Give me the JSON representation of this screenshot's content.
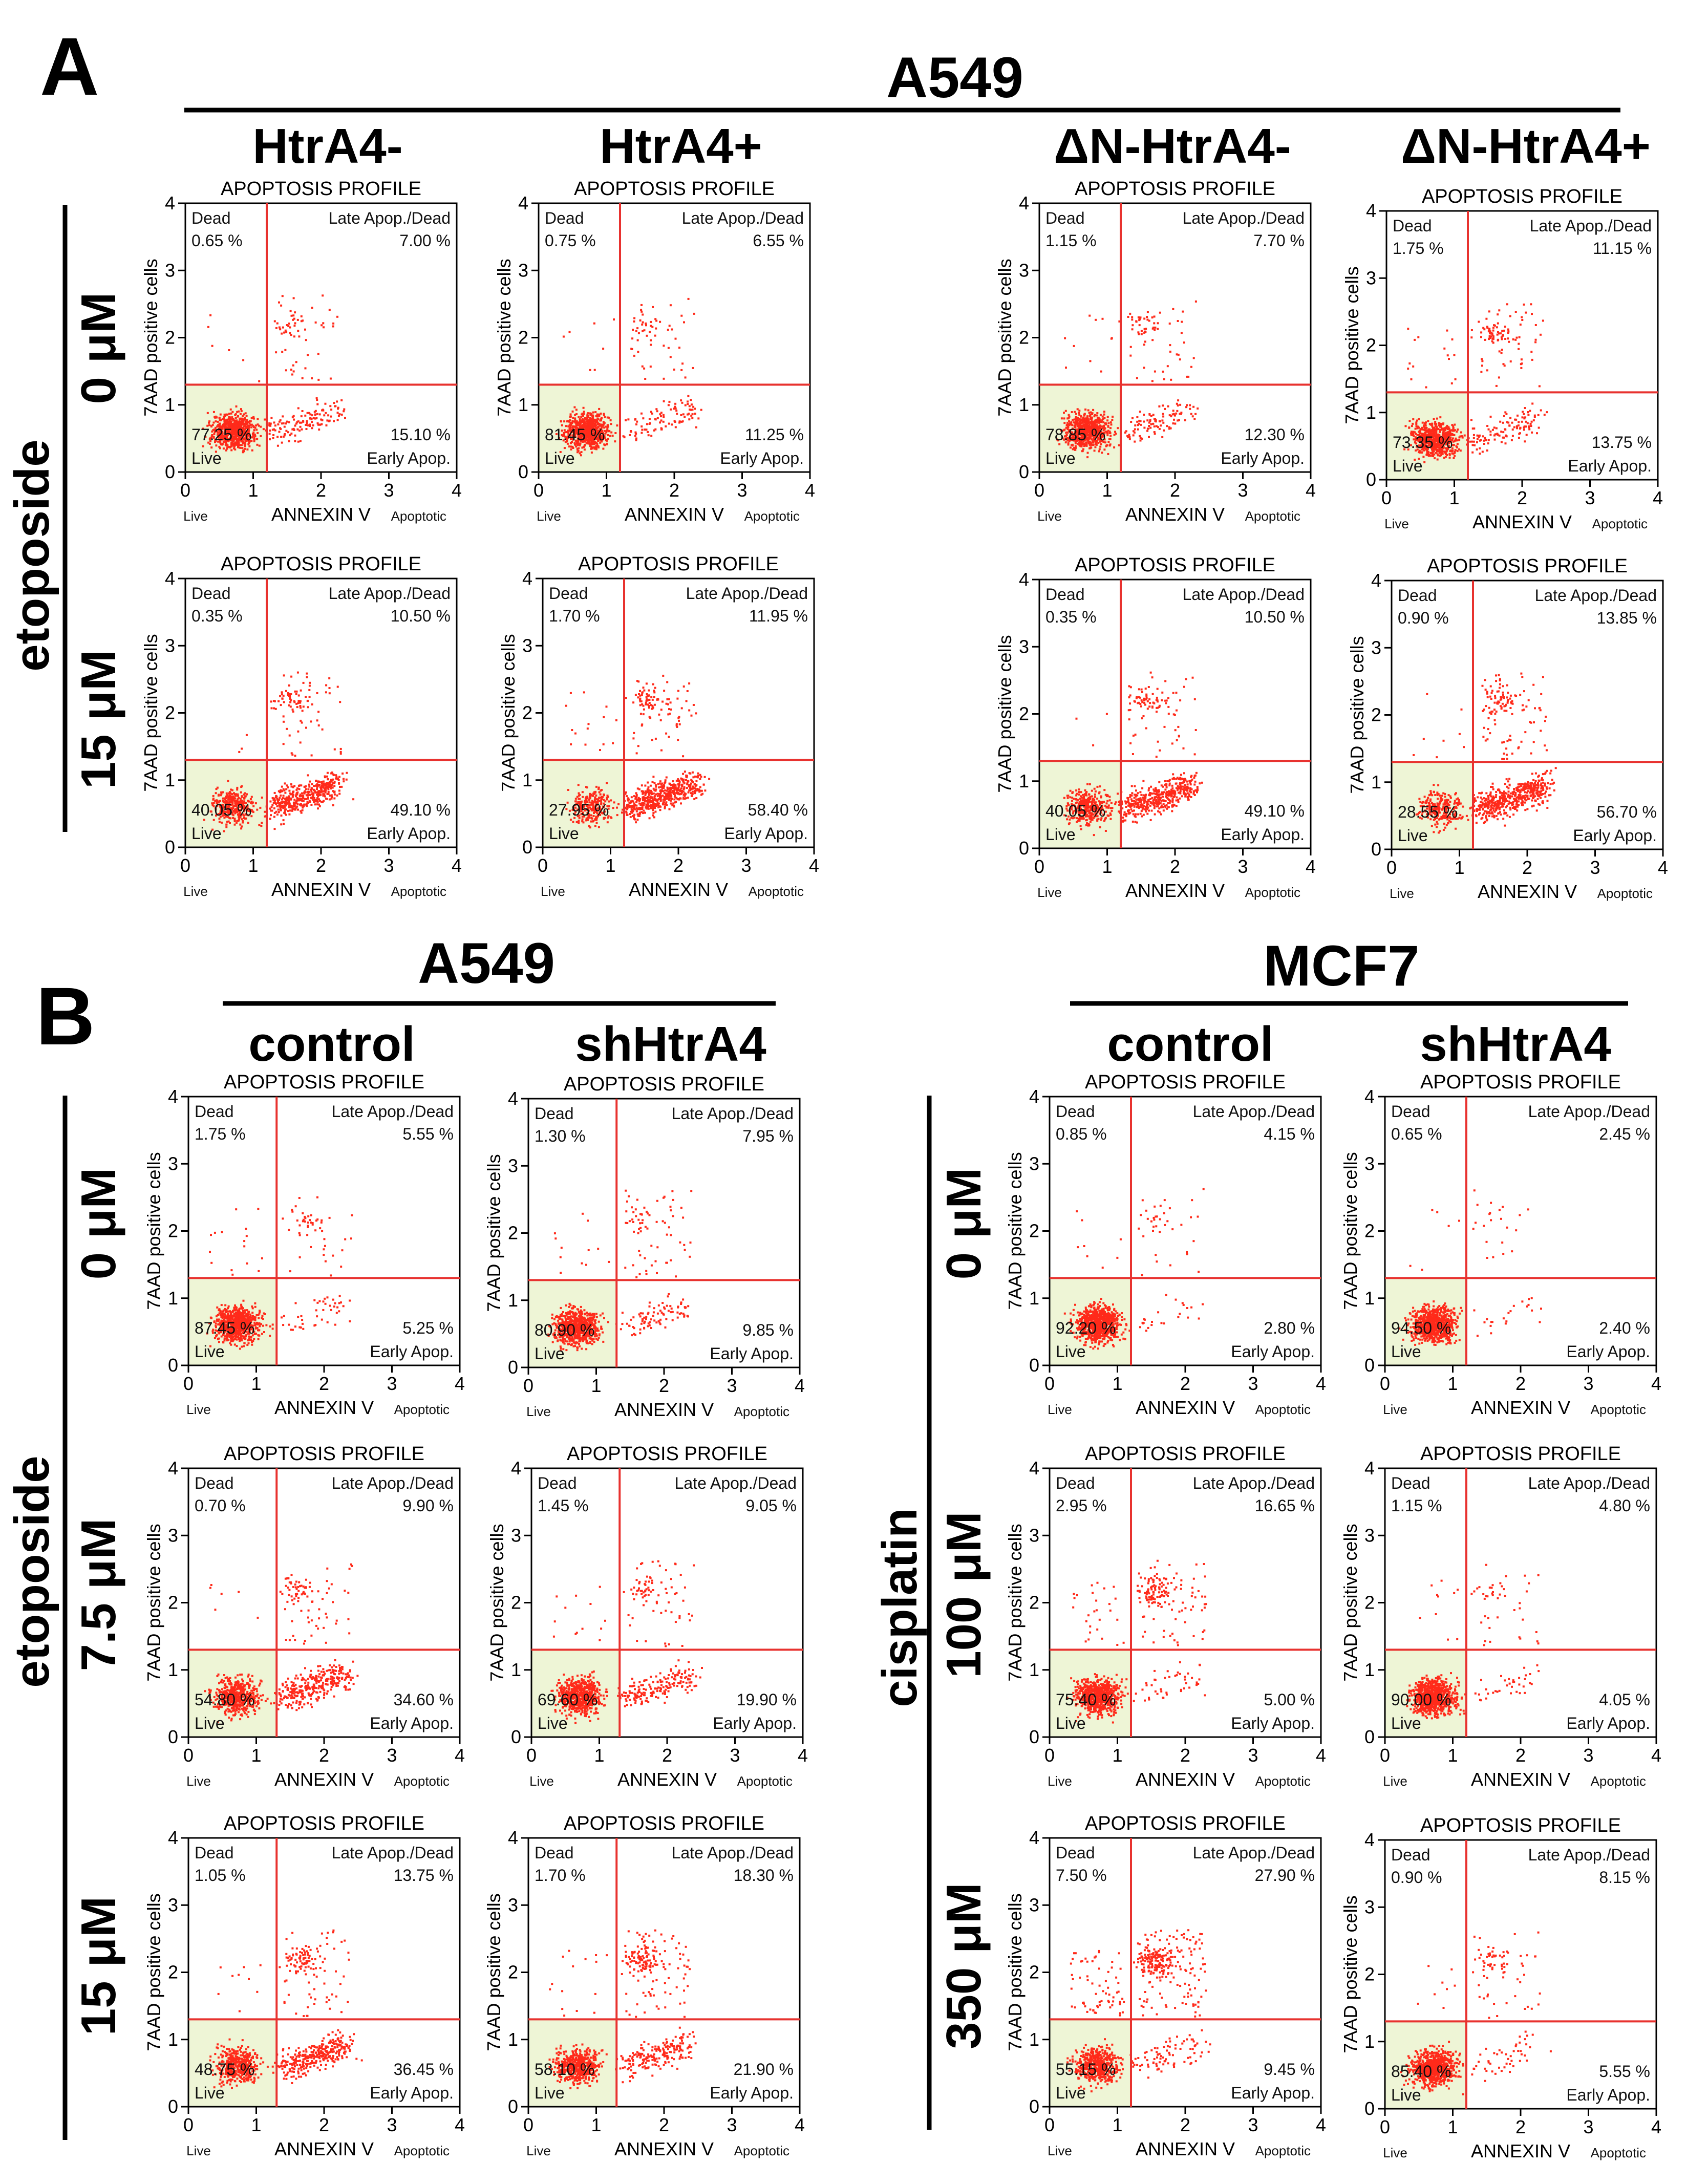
{
  "panelA": {
    "letter": "A",
    "cell_line": "A549",
    "columns": [
      "HtrA4-",
      "HtrA4+",
      "ΔN-HtrA4-",
      "ΔN-HtrA4+"
    ],
    "drug": "etoposide",
    "rows": [
      "0 μM",
      "15 μM"
    ]
  },
  "panelB": {
    "letter": "B",
    "cell_lines": [
      "A549",
      "MCF7"
    ],
    "columns": [
      "control",
      "shHtrA4",
      "control",
      "shHtrA4"
    ],
    "drugs": [
      "etoposide",
      "cisplatin"
    ],
    "rows_a549": [
      "0 μM",
      "7.5 μM",
      "15 μM"
    ],
    "rows_mcf7": [
      "0 μM",
      "100 μM",
      "350 μM"
    ]
  },
  "plot_labels": {
    "title": "APOPTOSIS PROFILE",
    "ylabel": "7AAD positive cells",
    "xlabel": "ANNEXIN V",
    "x_left": "Live",
    "x_right": "Apoptotic",
    "q_dead": "Dead",
    "q_late": "Late Apop./Dead",
    "q_live": "Live",
    "q_early": "Early Apop.",
    "ticks": [
      "0",
      "1",
      "2",
      "3",
      "4"
    ]
  },
  "colors": {
    "dots": "#ff2a1a",
    "gate_line": "#e8322f",
    "live_fill": "#eef5d6"
  },
  "chart_data": [
    {
      "id": "A-r0-c0",
      "type": "scatter",
      "title": "APOPTOSIS PROFILE",
      "xlabel": "ANNEXIN V",
      "ylabel": "7AAD positive cells",
      "xlim": [
        0,
        4
      ],
      "ylim": [
        0,
        4
      ],
      "gate_x": 1.2,
      "gate_y": 1.3,
      "quadrants": {
        "dead": "0.65 %",
        "late": "7.00 %",
        "live": "77.25 %",
        "early": "15.10 %"
      }
    },
    {
      "id": "A-r0-c1",
      "type": "scatter",
      "title": "APOPTOSIS PROFILE",
      "xlabel": "ANNEXIN V",
      "ylabel": "7AAD positive cells",
      "xlim": [
        0,
        4
      ],
      "ylim": [
        0,
        4
      ],
      "gate_x": 1.2,
      "gate_y": 1.3,
      "quadrants": {
        "dead": "0.75 %",
        "late": "6.55 %",
        "live": "81.45 %",
        "early": "11.25 %"
      }
    },
    {
      "id": "A-r0-c2",
      "type": "scatter",
      "title": "APOPTOSIS PROFILE",
      "xlabel": "ANNEXIN V",
      "ylabel": "7AAD positive cells",
      "xlim": [
        0,
        4
      ],
      "ylim": [
        0,
        4
      ],
      "gate_x": 1.2,
      "gate_y": 1.3,
      "quadrants": {
        "dead": "1.15 %",
        "late": "7.70 %",
        "live": "78.85 %",
        "early": "12.30 %"
      }
    },
    {
      "id": "A-r0-c3",
      "type": "scatter",
      "title": "APOPTOSIS PROFILE",
      "xlabel": "ANNEXIN V",
      "ylabel": "7AAD positive cells",
      "xlim": [
        0,
        4
      ],
      "ylim": [
        0,
        4
      ],
      "gate_x": 1.2,
      "gate_y": 1.3,
      "quadrants": {
        "dead": "1.75 %",
        "late": "11.15 %",
        "live": "73.35 %",
        "early": "13.75 %"
      }
    },
    {
      "id": "A-r1-c0",
      "type": "scatter",
      "title": "APOPTOSIS PROFILE",
      "xlabel": "ANNEXIN V",
      "ylabel": "7AAD positive cells",
      "xlim": [
        0,
        4
      ],
      "ylim": [
        0,
        4
      ],
      "gate_x": 1.2,
      "gate_y": 1.3,
      "quadrants": {
        "dead": "0.35 %",
        "late": "10.50 %",
        "live": "40.05 %",
        "early": "49.10 %"
      }
    },
    {
      "id": "A-r1-c1",
      "type": "scatter",
      "title": "APOPTOSIS PROFILE",
      "xlabel": "ANNEXIN V",
      "ylabel": "7AAD positive cells",
      "xlim": [
        0,
        4
      ],
      "ylim": [
        0,
        4
      ],
      "gate_x": 1.2,
      "gate_y": 1.3,
      "quadrants": {
        "dead": "1.70 %",
        "late": "11.95 %",
        "live": "27.95 %",
        "early": "58.40 %"
      }
    },
    {
      "id": "A-r1-c2",
      "type": "scatter",
      "title": "APOPTOSIS PROFILE",
      "xlabel": "ANNEXIN V",
      "ylabel": "7AAD positive cells",
      "xlim": [
        0,
        4
      ],
      "ylim": [
        0,
        4
      ],
      "gate_x": 1.2,
      "gate_y": 1.3,
      "quadrants": {
        "dead": "0.35 %",
        "late": "10.50 %",
        "live": "40.05 %",
        "early": "49.10 %"
      }
    },
    {
      "id": "A-r1-c3",
      "type": "scatter",
      "title": "APOPTOSIS PROFILE",
      "xlabel": "ANNEXIN V",
      "ylabel": "7AAD positive cells",
      "xlim": [
        0,
        4
      ],
      "ylim": [
        0,
        4
      ],
      "gate_x": 1.2,
      "gate_y": 1.3,
      "quadrants": {
        "dead": "0.90 %",
        "late": "13.85 %",
        "live": "28.55 %",
        "early": "56.70 %"
      }
    },
    {
      "id": "B-r0-c0",
      "type": "scatter",
      "title": "APOPTOSIS PROFILE",
      "xlabel": "ANNEXIN V",
      "ylabel": "7AAD positive cells",
      "xlim": [
        0,
        4
      ],
      "ylim": [
        0,
        4
      ],
      "gate_x": 1.3,
      "gate_y": 1.3,
      "quadrants": {
        "dead": "1.75 %",
        "late": "5.55 %",
        "live": "87.45 %",
        "early": "5.25 %"
      }
    },
    {
      "id": "B-r0-c1",
      "type": "scatter",
      "title": "APOPTOSIS PROFILE",
      "xlabel": "ANNEXIN V",
      "ylabel": "7AAD positive cells",
      "xlim": [
        0,
        4
      ],
      "ylim": [
        0,
        4
      ],
      "gate_x": 1.3,
      "gate_y": 1.3,
      "quadrants": {
        "dead": "1.30 %",
        "late": "7.95 %",
        "live": "80.90 %",
        "early": "9.85 %"
      }
    },
    {
      "id": "B-r0-c2",
      "type": "scatter",
      "title": "APOPTOSIS PROFILE",
      "xlabel": "ANNEXIN V",
      "ylabel": "7AAD positive cells",
      "xlim": [
        0,
        4
      ],
      "ylim": [
        0,
        4
      ],
      "gate_x": 1.2,
      "gate_y": 1.3,
      "quadrants": {
        "dead": "0.85 %",
        "late": "4.15 %",
        "live": "92.20 %",
        "early": "2.80 %"
      }
    },
    {
      "id": "B-r0-c3",
      "type": "scatter",
      "title": "APOPTOSIS PROFILE",
      "xlabel": "ANNEXIN V",
      "ylabel": "7AAD positive cells",
      "xlim": [
        0,
        4
      ],
      "ylim": [
        0,
        4
      ],
      "gate_x": 1.2,
      "gate_y": 1.3,
      "quadrants": {
        "dead": "0.65 %",
        "late": "2.45 %",
        "live": "94.50 %",
        "early": "2.40 %"
      }
    },
    {
      "id": "B-r1-c0",
      "type": "scatter",
      "title": "APOPTOSIS PROFILE",
      "xlabel": "ANNEXIN V",
      "ylabel": "7AAD positive cells",
      "xlim": [
        0,
        4
      ],
      "ylim": [
        0,
        4
      ],
      "gate_x": 1.3,
      "gate_y": 1.3,
      "quadrants": {
        "dead": "0.70 %",
        "late": "9.90 %",
        "live": "54.80 %",
        "early": "34.60 %"
      }
    },
    {
      "id": "B-r1-c1",
      "type": "scatter",
      "title": "APOPTOSIS PROFILE",
      "xlabel": "ANNEXIN V",
      "ylabel": "7AAD positive cells",
      "xlim": [
        0,
        4
      ],
      "ylim": [
        0,
        4
      ],
      "gate_x": 1.3,
      "gate_y": 1.3,
      "quadrants": {
        "dead": "1.45 %",
        "late": "9.05 %",
        "live": "69.60 %",
        "early": "19.90 %"
      }
    },
    {
      "id": "B-r1-c2",
      "type": "scatter",
      "title": "APOPTOSIS PROFILE",
      "xlabel": "ANNEXIN V",
      "ylabel": "7AAD positive cells",
      "xlim": [
        0,
        4
      ],
      "ylim": [
        0,
        4
      ],
      "gate_x": 1.2,
      "gate_y": 1.3,
      "quadrants": {
        "dead": "2.95 %",
        "late": "16.65 %",
        "live": "75.40 %",
        "early": "5.00 %"
      }
    },
    {
      "id": "B-r1-c3",
      "type": "scatter",
      "title": "APOPTOSIS PROFILE",
      "xlabel": "ANNEXIN V",
      "ylabel": "7AAD positive cells",
      "xlim": [
        0,
        4
      ],
      "ylim": [
        0,
        4
      ],
      "gate_x": 1.2,
      "gate_y": 1.3,
      "quadrants": {
        "dead": "1.15 %",
        "late": "4.80 %",
        "live": "90.00 %",
        "early": "4.05 %"
      }
    },
    {
      "id": "B-r2-c0",
      "type": "scatter",
      "title": "APOPTOSIS PROFILE",
      "xlabel": "ANNEXIN V",
      "ylabel": "7AAD positive cells",
      "xlim": [
        0,
        4
      ],
      "ylim": [
        0,
        4
      ],
      "gate_x": 1.3,
      "gate_y": 1.3,
      "quadrants": {
        "dead": "1.05 %",
        "late": "13.75 %",
        "live": "48.75 %",
        "early": "36.45 %"
      }
    },
    {
      "id": "B-r2-c1",
      "type": "scatter",
      "title": "APOPTOSIS PROFILE",
      "xlabel": "ANNEXIN V",
      "ylabel": "7AAD positive cells",
      "xlim": [
        0,
        4
      ],
      "ylim": [
        0,
        4
      ],
      "gate_x": 1.3,
      "gate_y": 1.3,
      "quadrants": {
        "dead": "1.70 %",
        "late": "18.30 %",
        "live": "58.10 %",
        "early": "21.90 %"
      }
    },
    {
      "id": "B-r2-c2",
      "type": "scatter",
      "title": "APOPTOSIS PROFILE",
      "xlabel": "ANNEXIN V",
      "ylabel": "7AAD positive cells",
      "xlim": [
        0,
        4
      ],
      "ylim": [
        0,
        4
      ],
      "gate_x": 1.2,
      "gate_y": 1.3,
      "quadrants": {
        "dead": "7.50 %",
        "late": "27.90 %",
        "live": "55.15 %",
        "early": "9.45 %"
      }
    },
    {
      "id": "B-r2-c3",
      "type": "scatter",
      "title": "APOPTOSIS PROFILE",
      "xlabel": "ANNEXIN V",
      "ylabel": "7AAD positive cells",
      "xlim": [
        0,
        4
      ],
      "ylim": [
        0,
        4
      ],
      "gate_x": 1.2,
      "gate_y": 1.3,
      "quadrants": {
        "dead": "0.90 %",
        "late": "8.15 %",
        "live": "85.40 %",
        "early": "5.55 %"
      }
    }
  ]
}
